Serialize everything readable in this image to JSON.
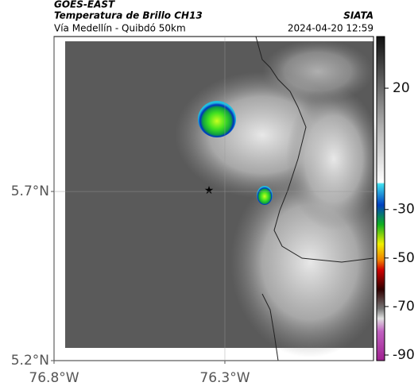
{
  "header": {
    "source": "GOES-EAST",
    "product": "Temperatura de Brillo CH13",
    "region": "Vía Medellín - Quibdó 50km",
    "agency": "SIATA",
    "datetime": "2024-04-20 12:59"
  },
  "map": {
    "xlim": [
      -76.8,
      -75.865
    ],
    "ylim": [
      5.2,
      6.158
    ],
    "xticks": [
      {
        "value": -76.8,
        "label": "76.8°W"
      },
      {
        "value": -76.3,
        "label": "76.3°W"
      }
    ],
    "yticks": [
      {
        "value": 5.2,
        "label": "5.2°N"
      },
      {
        "value": 5.7,
        "label": "5.7°N"
      }
    ]
  },
  "colorbar": {
    "lim": [
      -92.3,
      41.3
    ],
    "ticks": [
      20,
      -30,
      -50,
      -70,
      -90
    ]
  }
}
